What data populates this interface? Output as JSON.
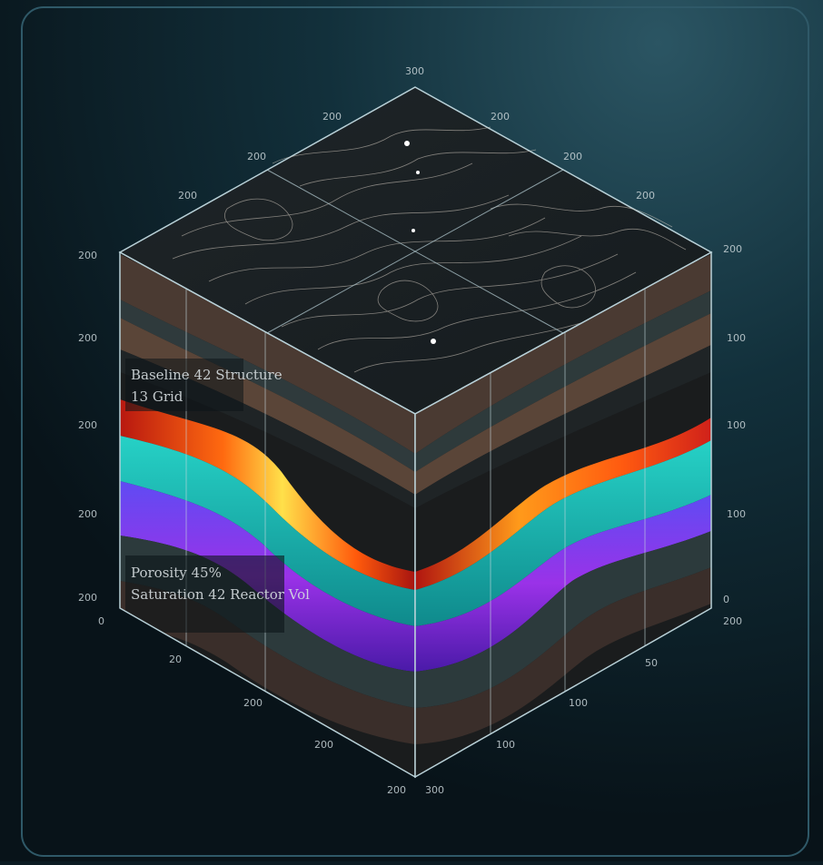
{
  "axis_labels": {
    "top_right_edge": [
      "300",
      "200",
      "200",
      "200",
      "200"
    ],
    "top_left_edge": [
      "200",
      "200",
      "200",
      "200"
    ],
    "left_vertical": [
      "200",
      "200",
      "200",
      "200",
      "200",
      "0"
    ],
    "right_vertical": [
      "200",
      "100",
      "100",
      "100",
      "0",
      "200"
    ],
    "bottom_left_edge": [
      "20",
      "200",
      "200",
      "200"
    ],
    "bottom_right_edge": [
      "300",
      "100",
      "50"
    ]
  },
  "overlays": {
    "upper_panel": [
      "Baseline 42 Structure",
      "13 Grid"
    ],
    "lower_panel": [
      "Porosity 45%",
      "Saturation 42 Reactor Vol"
    ]
  },
  "colors": {
    "background": "#0b1a22",
    "frame": "#a9c6cf",
    "heat_core": "#ffd43a",
    "heat_edge": "#c71a12",
    "teal_layer": "#1ab2b0",
    "violet_layer": "#7a3cf0"
  }
}
